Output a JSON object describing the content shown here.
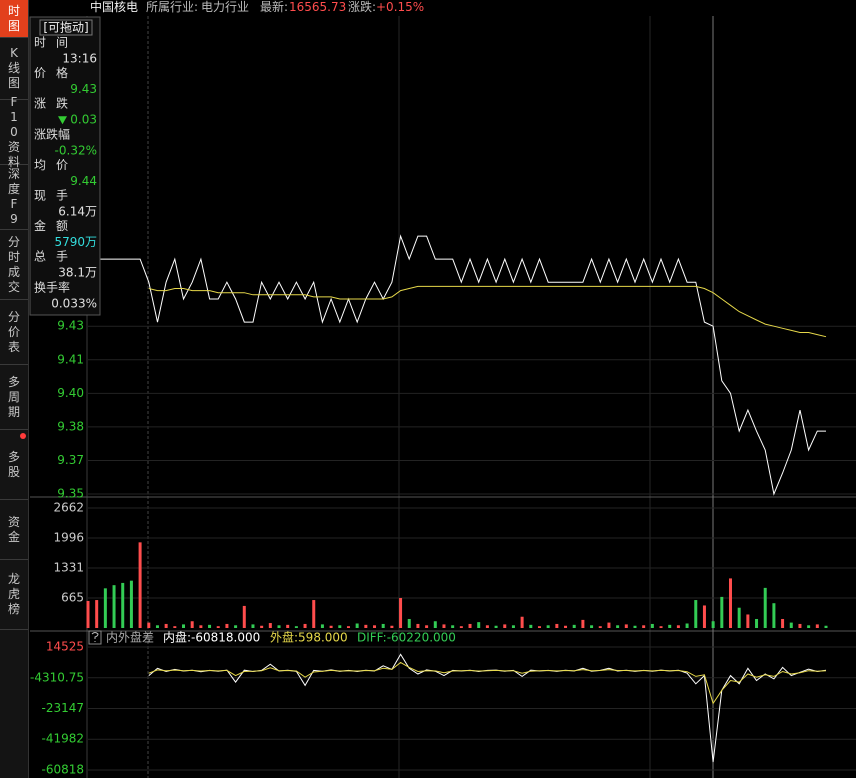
{
  "header": {
    "name": "中国核电",
    "industry_label": "所属行业:",
    "industry": "电力行业",
    "latest_label": "最新:",
    "latest": "16565.73",
    "change_label": "涨跌:",
    "change": "+0.15%"
  },
  "sidebar": {
    "active": 0,
    "tabs": [
      "时图",
      "K线图",
      "F10资料",
      "深度F9",
      "分时成交",
      "分价表",
      "多周期",
      "多股",
      "资金",
      "龙虎榜"
    ]
  },
  "tooltip": {
    "title": "[可拖动]",
    "rows": [
      {
        "label": "时间",
        "value": "13:16",
        "color": "#e0e0e0"
      },
      {
        "label": "价格",
        "value": "9.43",
        "color": "#33cc33"
      },
      {
        "label": "涨跌",
        "value": "0.03",
        "color": "#33cc33"
      },
      {
        "label": "涨跌幅",
        "value": "-0.32%",
        "color": "#33cc33"
      },
      {
        "label": "均价",
        "value": "9.44",
        "color": "#33cc33"
      },
      {
        "label": "现手",
        "value": "6.14万",
        "color": "#e0e0e0"
      },
      {
        "label": "金额",
        "value": "5790万",
        "color": "#33dddd"
      },
      {
        "label": "总手",
        "value": "38.1万",
        "color": "#e0e0e0"
      },
      {
        "label": "换手率",
        "value": "0.033%",
        "color": "#e0e0e0"
      }
    ]
  },
  "chart_data": [
    {
      "type": "line",
      "ylim": [
        9.35,
        9.577
      ],
      "tick_color": "#33cc33",
      "grid": true,
      "yticks": [
        9.35,
        {
          "value": 9.366,
          "label": "9.37"
        },
        {
          "value": 9.382,
          "label": "9.38"
        },
        {
          "value": 9.398,
          "label": "9.40"
        },
        {
          "value": 9.414,
          "label": "9.41"
        },
        9.43
      ],
      "series": [
        {
          "color": "#ffffff",
          "values": [
            9.462,
            9.462,
            9.462,
            9.462,
            9.462,
            9.462,
            9.462,
            9.451,
            9.432,
            9.451,
            9.462,
            9.443,
            9.451,
            9.462,
            9.443,
            9.443,
            9.451,
            9.443,
            9.432,
            9.432,
            9.451,
            9.443,
            9.451,
            9.443,
            9.451,
            9.443,
            9.451,
            9.432,
            9.443,
            9.432,
            9.443,
            9.432,
            9.443,
            9.451,
            9.443,
            9.451,
            9.473,
            9.462,
            9.473,
            9.473,
            9.462,
            9.462,
            9.462,
            9.451,
            9.462,
            9.451,
            9.462,
            9.451,
            9.462,
            9.451,
            9.462,
            9.451,
            9.462,
            9.451,
            9.451,
            9.451,
            9.451,
            9.451,
            9.462,
            9.451,
            9.462,
            9.451,
            9.462,
            9.451,
            9.462,
            9.451,
            9.462,
            9.451,
            9.462,
            9.451,
            9.451,
            9.432,
            9.43,
            9.404,
            9.398,
            9.38,
            9.39,
            9.38,
            9.371,
            9.35,
            9.36,
            9.371,
            9.39,
            9.371,
            9.38,
            9.38
          ]
        },
        {
          "color": "#e6d84a",
          "values": [
            null,
            null,
            null,
            null,
            null,
            null,
            null,
            9.448,
            9.447,
            9.447,
            9.448,
            9.448,
            9.447,
            9.447,
            9.447,
            9.446,
            9.446,
            9.446,
            9.446,
            9.445,
            9.445,
            9.445,
            9.445,
            9.445,
            9.445,
            9.445,
            9.444,
            9.444,
            9.444,
            9.443,
            9.443,
            9.443,
            9.443,
            9.443,
            9.443,
            9.444,
            9.447,
            9.448,
            9.449,
            9.449,
            9.449,
            9.449,
            9.449,
            9.449,
            9.449,
            9.449,
            9.449,
            9.449,
            9.449,
            9.449,
            9.449,
            9.449,
            9.449,
            9.449,
            9.449,
            9.449,
            9.449,
            9.449,
            9.449,
            9.449,
            9.449,
            9.449,
            9.449,
            9.449,
            9.449,
            9.449,
            9.449,
            9.449,
            9.449,
            9.449,
            9.449,
            9.448,
            9.446,
            9.443,
            9.44,
            9.437,
            9.435,
            9.433,
            9.431,
            9.43,
            9.429,
            9.428,
            9.427,
            9.427,
            9.426,
            9.425
          ]
        }
      ]
    },
    {
      "type": "bar",
      "ylim": [
        0,
        2662
      ],
      "tick_color": "#cccccc",
      "grid": true,
      "yticks": [
        665,
        1331,
        1996,
        2662
      ],
      "values": [
        600,
        620,
        880,
        950,
        1000,
        1050,
        1900,
        120,
        60,
        90,
        40,
        80,
        150,
        60,
        70,
        40,
        90,
        60,
        490,
        80,
        50,
        110,
        60,
        70,
        40,
        90,
        620,
        80,
        50,
        60,
        40,
        100,
        70,
        60,
        90,
        50,
        665,
        200,
        90,
        60,
        150,
        80,
        60,
        40,
        90,
        130,
        60,
        50,
        80,
        60,
        250,
        70,
        40,
        60,
        90,
        50,
        70,
        180,
        60,
        40,
        120,
        60,
        80,
        50,
        60,
        90,
        40,
        70,
        60,
        100,
        620,
        500,
        150,
        690,
        1100,
        450,
        300,
        200,
        890,
        550,
        200,
        120,
        90,
        60,
        80,
        50
      ],
      "colors": [
        "#ff4d4d",
        "#ff4d4d",
        "#33cc55",
        "#33cc55",
        "#33cc55",
        "#33cc55",
        "#ff4d4d",
        "#ff4d4d",
        "#33cc55",
        "#ff4d4d",
        "#ff4d4d",
        "#33cc55",
        "#ff4d4d",
        "#ff4d4d",
        "#33cc55",
        "#ff4d4d",
        "#ff4d4d",
        "#33cc55",
        "#ff4d4d",
        "#33cc55",
        "#ff4d4d",
        "#ff4d4d",
        "#33cc55",
        "#ff4d4d",
        "#33cc55",
        "#ff4d4d",
        "#ff4d4d",
        "#33cc55",
        "#ff4d4d",
        "#33cc55",
        "#ff4d4d",
        "#33cc55",
        "#ff4d4d",
        "#ff4d4d",
        "#33cc55",
        "#ff4d4d",
        "#ff4d4d",
        "#33cc55",
        "#ff4d4d",
        "#ff4d4d",
        "#33cc55",
        "#ff4d4d",
        "#33cc55",
        "#ff4d4d",
        "#ff4d4d",
        "#33cc55",
        "#ff4d4d",
        "#33cc55",
        "#ff4d4d",
        "#33cc55",
        "#ff4d4d",
        "#33cc55",
        "#ff4d4d",
        "#33cc55",
        "#ff4d4d",
        "#ff4d4d",
        "#33cc55",
        "#ff4d4d",
        "#33cc55",
        "#ff4d4d",
        "#ff4d4d",
        "#33cc55",
        "#ff4d4d",
        "#33cc55",
        "#ff4d4d",
        "#33cc55",
        "#ff4d4d",
        "#33cc55",
        "#ff4d4d",
        "#33cc55",
        "#33cc55",
        "#ff4d4d",
        "#33cc55",
        "#33cc55",
        "#ff4d4d",
        "#33cc55",
        "#ff4d4d",
        "#33cc55",
        "#33cc55",
        "#33cc55",
        "#ff4d4d",
        "#33cc55",
        "#ff4d4d",
        "#33cc55",
        "#ff4d4d",
        "#33cc55"
      ]
    },
    {
      "type": "line",
      "ylim": [
        -60818,
        14525
      ],
      "grid": true,
      "indicator": "内外盘差",
      "legend": [
        {
          "text": "内盘:-60818.000",
          "color": "#ffffff"
        },
        {
          "text": "外盘:598.000",
          "color": "#e6d84a"
        },
        {
          "text": "DIFF:-60220.000",
          "color": "#33cc55"
        }
      ],
      "yticks": [
        14525,
        -4310.75,
        -23147,
        -41982,
        -60818
      ],
      "series": [
        {
          "color": "#ffffff",
          "values": [
            null,
            null,
            null,
            null,
            null,
            null,
            null,
            -3000,
            1500,
            -500,
            800,
            -200,
            300,
            -600,
            200,
            -300,
            400,
            -7000,
            300,
            -500,
            200,
            4000,
            -200,
            300,
            -400,
            -9000,
            200,
            -300,
            500,
            -400,
            200,
            -500,
            300,
            -200,
            3000,
            800,
            10000,
            1500,
            -2000,
            500,
            -300,
            -3000,
            200,
            -200,
            300,
            -500,
            200,
            400,
            -300,
            200,
            -3500,
            300,
            -200,
            200,
            -400,
            300,
            -200,
            1500,
            -300,
            200,
            1500,
            -200,
            300,
            -400,
            200,
            -300,
            400,
            -200,
            300,
            -1500,
            -8000,
            -3000,
            -56000,
            -12000,
            -3000,
            -8000,
            1500,
            -6000,
            -2000,
            -5000,
            2000,
            -3000,
            -1000,
            1000,
            -500,
            300
          ]
        },
        {
          "color": "#e6d84a",
          "values": [
            null,
            null,
            null,
            null,
            null,
            null,
            null,
            -1500,
            500,
            0,
            400,
            0,
            200,
            -200,
            100,
            -100,
            200,
            -3000,
            -500,
            -300,
            0,
            1800,
            0,
            100,
            -200,
            -4000,
            -800,
            -300,
            200,
            -200,
            0,
            -200,
            100,
            0,
            1500,
            800,
            5000,
            2000,
            -500,
            0,
            -100,
            -1200,
            -200,
            0,
            100,
            -200,
            0,
            200,
            -100,
            0,
            -1500,
            -300,
            0,
            100,
            -100,
            100,
            0,
            700,
            0,
            100,
            700,
            100,
            100,
            -100,
            100,
            -100,
            200,
            0,
            100,
            -600,
            -3500,
            -2500,
            -20000,
            -12000,
            -6000,
            -7000,
            -2000,
            -4000,
            -2500,
            -3500,
            -500,
            -2000,
            -1200,
            0,
            -300,
            0
          ]
        }
      ]
    }
  ]
}
